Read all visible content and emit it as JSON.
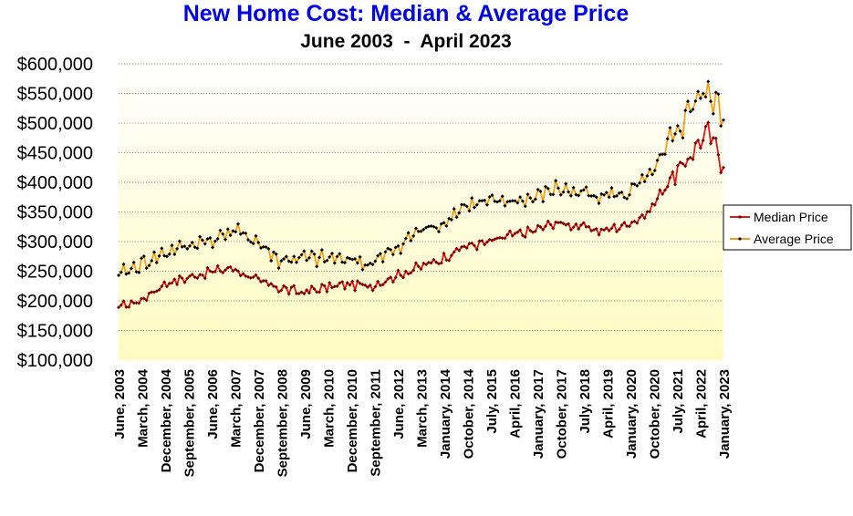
{
  "colors": {
    "title": "#0000e0",
    "median": "#e01818",
    "median_marker": "#7a0000",
    "average": "#f0a020",
    "average_marker": "#000000",
    "bg_top": "#ffffff",
    "bg_bottom": "#fffbc0",
    "grid": "#888888"
  },
  "chart_data": {
    "type": "line",
    "title": "New Home Cost: Median & Average Price",
    "subtitle": "June 2003  -  April 2023",
    "ylim": [
      100000,
      600000
    ],
    "y_ticks": [
      "$100,000",
      "$150,000",
      "$200,000",
      "$250,000",
      "$300,000",
      "$350,000",
      "$400,000",
      "$450,000",
      "$500,000",
      "$550,000",
      "$600,000"
    ],
    "x_tick_labels": [
      "June, 2003",
      "March, 2004",
      "December, 2004",
      "September, 2005",
      "June, 2006",
      "March, 2007",
      "December, 2007",
      "September, 2008",
      "June, 2009",
      "March, 2010",
      "December, 2010",
      "September, 2011",
      "June, 2012",
      "March, 2013",
      "January, 2014",
      "October, 2014",
      "July, 2015",
      "April, 2016",
      "January, 2017",
      "October, 2017",
      "July, 2018",
      "April, 2019",
      "January, 2020",
      "October, 2020",
      "July, 2021",
      "April, 2022",
      "January, 2023"
    ],
    "grid": "horizontal dotted",
    "legend_position": "right",
    "x_range": [
      "2003-06",
      "2023-04"
    ],
    "series": [
      {
        "name": "Median Price",
        "anchors": [
          [
            "2003-06",
            189000
          ],
          [
            "2004-03",
            201000
          ],
          [
            "2004-12",
            229000
          ],
          [
            "2005-09",
            239000
          ],
          [
            "2006-06",
            249000
          ],
          [
            "2007-03",
            255000
          ],
          [
            "2007-12",
            235000
          ],
          [
            "2008-09",
            222000
          ],
          [
            "2009-06",
            214000
          ],
          [
            "2010-03",
            222000
          ],
          [
            "2010-12",
            228000
          ],
          [
            "2011-09",
            225000
          ],
          [
            "2012-06",
            240000
          ],
          [
            "2013-03",
            255000
          ],
          [
            "2014-01",
            270000
          ],
          [
            "2014-10",
            292000
          ],
          [
            "2015-07",
            298000
          ],
          [
            "2016-04",
            310000
          ],
          [
            "2017-01",
            318000
          ],
          [
            "2017-10",
            332000
          ],
          [
            "2018-07",
            326000
          ],
          [
            "2019-04",
            318000
          ],
          [
            "2020-01",
            327000
          ],
          [
            "2020-10",
            347000
          ],
          [
            "2021-07",
            405000
          ],
          [
            "2022-01",
            430000
          ],
          [
            "2022-04",
            455000
          ],
          [
            "2022-10",
            485000
          ],
          [
            "2023-01",
            460000
          ],
          [
            "2023-04",
            425000
          ]
        ]
      },
      {
        "name": "Average Price",
        "anchors": [
          [
            "2003-06",
            243000
          ],
          [
            "2004-03",
            262000
          ],
          [
            "2004-12",
            280000
          ],
          [
            "2005-09",
            293000
          ],
          [
            "2006-06",
            302000
          ],
          [
            "2007-03",
            318000
          ],
          [
            "2007-12",
            302000
          ],
          [
            "2008-09",
            268000
          ],
          [
            "2009-06",
            272000
          ],
          [
            "2010-03",
            270000
          ],
          [
            "2010-12",
            273000
          ],
          [
            "2011-09",
            260000
          ],
          [
            "2012-06",
            285000
          ],
          [
            "2013-03",
            315000
          ],
          [
            "2014-01",
            330000
          ],
          [
            "2014-10",
            360000
          ],
          [
            "2015-07",
            365000
          ],
          [
            "2016-04",
            368000
          ],
          [
            "2017-01",
            372000
          ],
          [
            "2017-10",
            390000
          ],
          [
            "2018-07",
            382000
          ],
          [
            "2019-04",
            380000
          ],
          [
            "2020-01",
            378000
          ],
          [
            "2020-10",
            405000
          ],
          [
            "2021-07",
            460000
          ],
          [
            "2022-01",
            510000
          ],
          [
            "2022-04",
            540000
          ],
          [
            "2022-10",
            545000
          ],
          [
            "2023-01",
            535000
          ],
          [
            "2023-04",
            505000
          ]
        ]
      }
    ]
  }
}
